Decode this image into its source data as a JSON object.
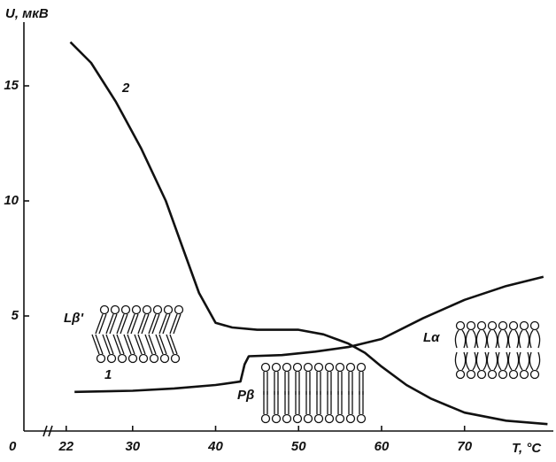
{
  "chart_data": {
    "type": "line",
    "y_label": "U, мкВ",
    "x_label": "T, °C",
    "origin_label": "0",
    "xlim": [
      16.9,
      80.7
    ],
    "ylim": [
      0,
      17.5
    ],
    "xticks": [
      22,
      30,
      40,
      50,
      60,
      70
    ],
    "yticks": [
      5,
      10,
      15
    ],
    "series": [
      {
        "name": "1",
        "color": "#111111",
        "x": [
          23,
          30,
          35,
          40,
          43,
          43.5,
          44,
          48,
          52,
          56,
          60,
          65,
          70,
          75,
          79.5
        ],
        "values": [
          1.7,
          1.75,
          1.85,
          2.0,
          2.15,
          2.9,
          3.25,
          3.3,
          3.45,
          3.65,
          4.0,
          4.9,
          5.7,
          6.3,
          6.7
        ]
      },
      {
        "name": "2",
        "color": "#111111",
        "x": [
          22.5,
          25,
          28,
          31,
          34,
          36,
          38,
          40,
          42,
          45,
          50,
          53,
          56,
          58,
          60,
          63,
          66,
          70,
          75,
          80
        ],
        "values": [
          16.9,
          16.0,
          14.3,
          12.3,
          10.0,
          8.0,
          6.0,
          4.7,
          4.5,
          4.4,
          4.4,
          4.2,
          3.8,
          3.4,
          2.8,
          2.0,
          1.4,
          0.8,
          0.45,
          0.3
        ]
      }
    ],
    "annotations": [
      "Lβ'",
      "Pβ",
      "Lα"
    ]
  }
}
